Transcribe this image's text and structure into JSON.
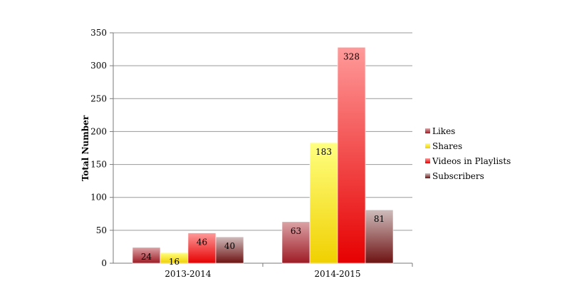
{
  "chart_data": {
    "type": "bar",
    "title": "",
    "xlabel": "",
    "ylabel": "Total Number",
    "ylim": [
      0,
      350
    ],
    "yticks": [
      0,
      50,
      100,
      150,
      200,
      250,
      300,
      350
    ],
    "grid": true,
    "legend_position": "right",
    "categories": [
      "2013-2014",
      "2014-2015"
    ],
    "series": [
      {
        "name": "Likes",
        "values": [
          24,
          63
        ],
        "color_top": "#dba3a6",
        "color_bottom": "#9e1b25"
      },
      {
        "name": "Shares",
        "values": [
          16,
          183
        ],
        "color_top": "#ffff80",
        "color_bottom": "#f0d000"
      },
      {
        "name": "Videos in Playlists",
        "values": [
          46,
          328
        ],
        "color_top": "#ff9a9a",
        "color_bottom": "#e60000"
      },
      {
        "name": "Subscribers",
        "values": [
          40,
          81
        ],
        "color_top": "#cfbcbc",
        "color_bottom": "#6e1212"
      }
    ]
  }
}
